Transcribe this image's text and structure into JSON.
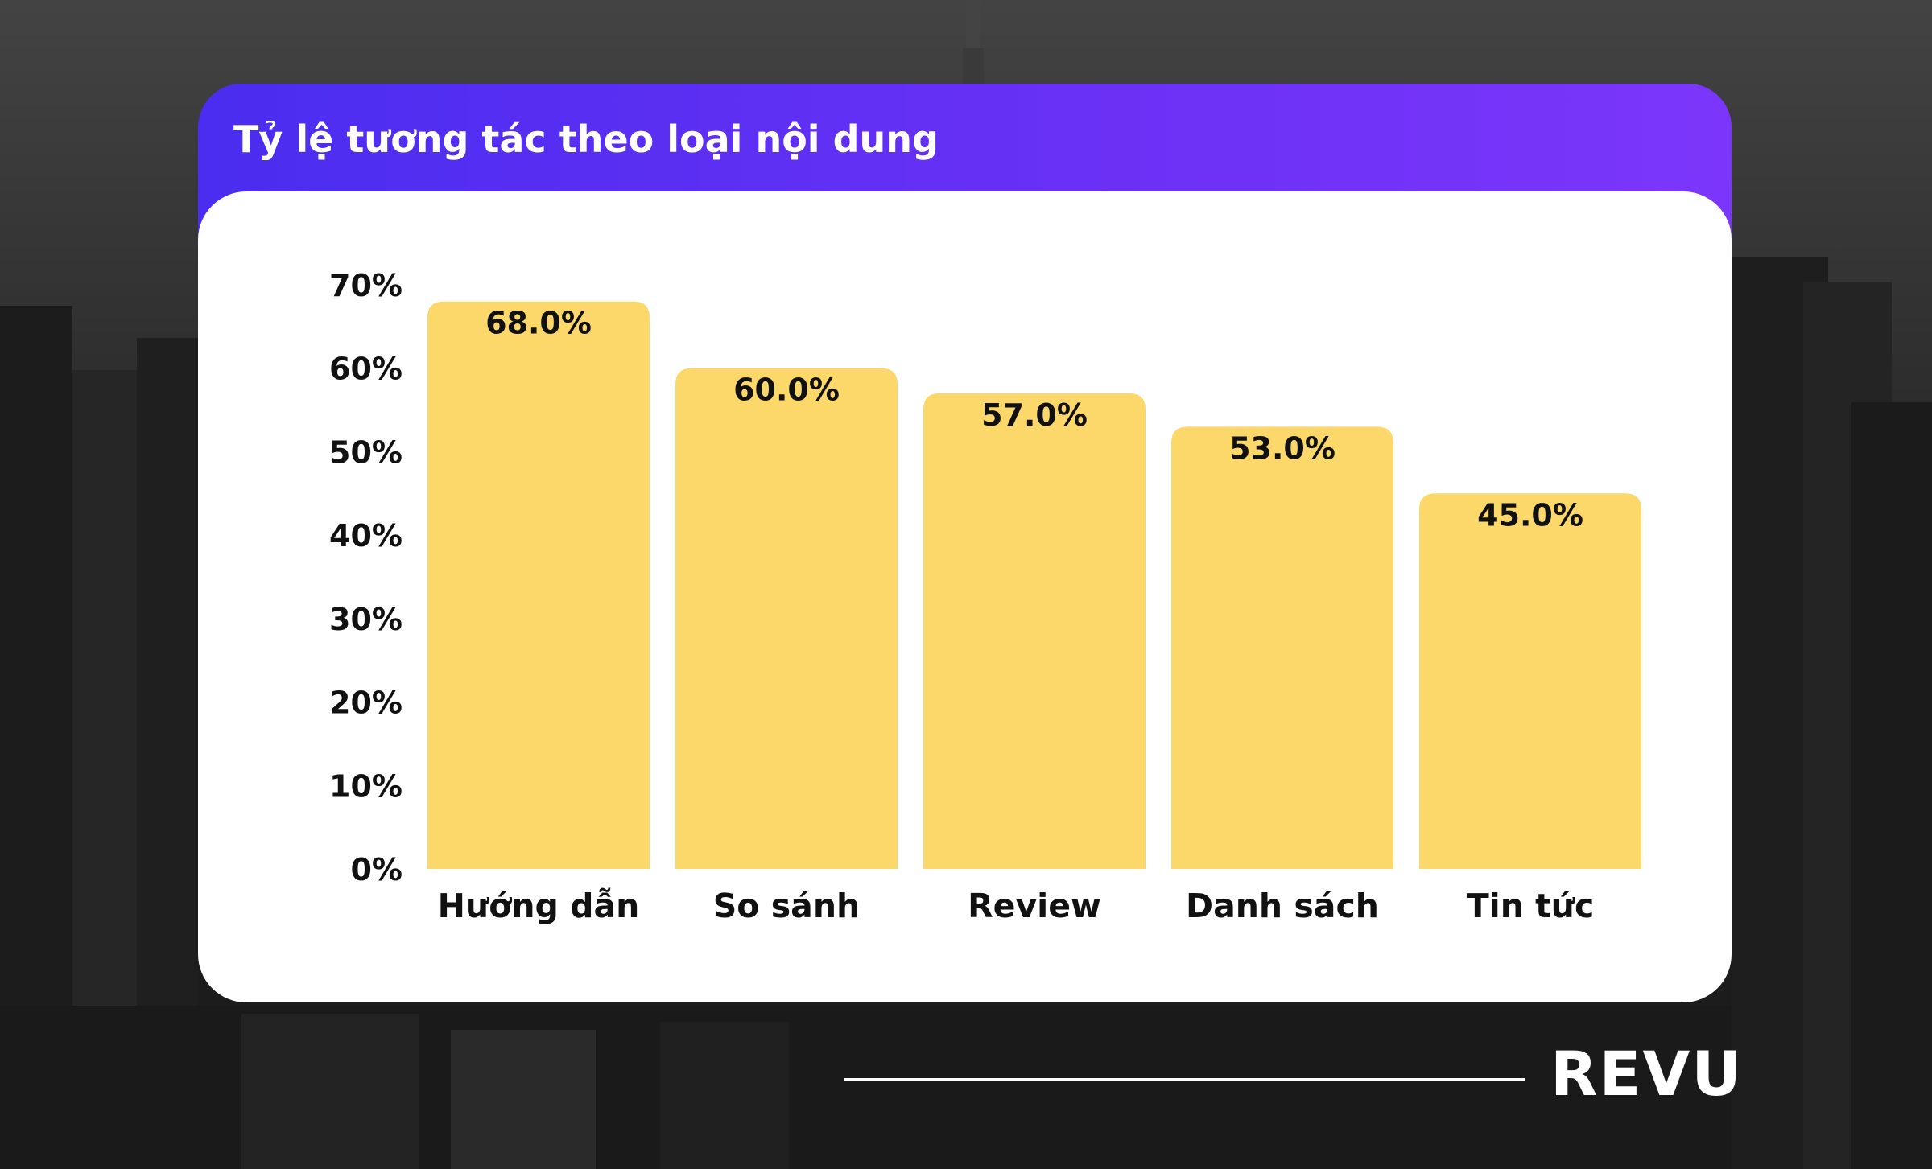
{
  "title": "Tỷ lệ tương tác theo loại nội dung",
  "brand": "REVU",
  "colors": {
    "bar": "#fcd86b",
    "header_start": "#4a2df0",
    "header_end": "#7c36fb",
    "text": "#111111"
  },
  "chart_data": {
    "type": "bar",
    "title": "Tỷ lệ tương tác theo loại nội dung",
    "categories": [
      "Hướng dẫn",
      "So sánh",
      "Review",
      "Danh sách",
      "Tin tức"
    ],
    "values": [
      68.0,
      60.0,
      57.0,
      53.0,
      45.0
    ],
    "data_labels": [
      "68.0%",
      "60.0%",
      "57.0%",
      "53.0%",
      "45.0%"
    ],
    "yticks": [
      "0%",
      "10%",
      "20%",
      "30%",
      "40%",
      "50%",
      "60%",
      "70%"
    ],
    "ylim": [
      0,
      70
    ],
    "xlabel": "",
    "ylabel": "",
    "grid": false,
    "legend": "none"
  }
}
